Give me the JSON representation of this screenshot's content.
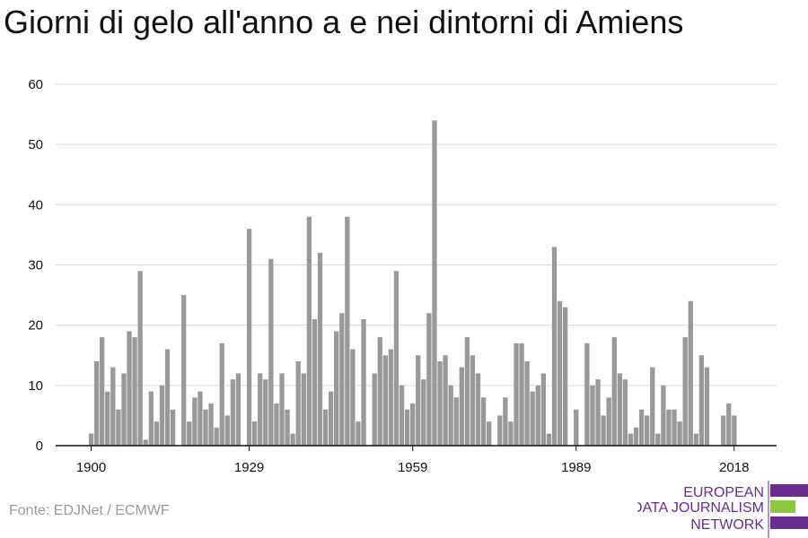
{
  "title": "Giorni di gelo all'anno a e nei dintorni di Amiens",
  "source": "Fonte: EDJNet / ECMWF",
  "logo": {
    "lines": [
      "EUROPEAN",
      "DATA JOURNALISM",
      "NETWORK"
    ],
    "colors": {
      "purple": "#6a2d8f",
      "green": "#8dc63f"
    }
  },
  "colors": {
    "bar": "#999999",
    "grid": "#d9d9d9",
    "axis": "#111111"
  },
  "chart_data": {
    "type": "bar",
    "x_start": 1900,
    "x_end": 2019,
    "x_ticks": [
      1900,
      1929,
      1959,
      1989,
      2018
    ],
    "y_ticks": [
      0,
      10,
      20,
      30,
      40,
      50,
      60
    ],
    "ylim": [
      0,
      60
    ],
    "title": "Giorni di gelo all'anno a e nei dintorni di Amiens",
    "xlabel": "",
    "ylabel": "",
    "grid": true,
    "values": [
      2,
      14,
      18,
      9,
      13,
      6,
      12,
      19,
      18,
      29,
      1,
      9,
      4,
      10,
      16,
      6,
      0,
      25,
      4,
      8,
      9,
      6,
      7,
      3,
      17,
      5,
      11,
      12,
      0,
      36,
      4,
      12,
      11,
      31,
      7,
      12,
      6,
      2,
      14,
      12,
      38,
      21,
      32,
      6,
      9,
      19,
      22,
      38,
      16,
      4,
      21,
      0,
      12,
      18,
      15,
      16,
      29,
      10,
      6,
      7,
      15,
      11,
      22,
      54,
      14,
      15,
      10,
      8,
      13,
      18,
      15,
      12,
      8,
      4,
      0,
      5,
      8,
      4,
      17,
      17,
      14,
      9,
      10,
      12,
      2,
      33,
      24,
      23,
      0,
      6,
      0,
      17,
      10,
      11,
      5,
      8,
      18,
      12,
      11,
      2,
      3,
      6,
      5,
      13,
      2,
      10,
      6,
      6,
      4,
      18,
      24,
      2,
      15,
      13,
      0,
      0,
      5,
      7,
      5
    ]
  }
}
